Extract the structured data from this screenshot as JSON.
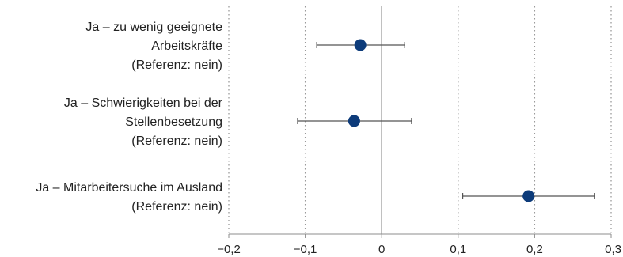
{
  "chart_data": {
    "type": "scatter",
    "title": "",
    "xlabel": "",
    "ylabel": "",
    "xlim": [
      -0.2,
      0.3
    ],
    "x_ticks": [
      -0.2,
      -0.1,
      0,
      0.1,
      0.2,
      0.3
    ],
    "x_tick_labels": [
      "−0,2",
      "−0,1",
      "0",
      "0,1",
      "0,2",
      "0,3"
    ],
    "grid": "vertical dotted",
    "zero_line": true,
    "colors": {
      "point": "#0d3b7a",
      "error_bar": "#555555",
      "grid": "#9a9a9a",
      "zero_line": "#8c8c8c",
      "axis": "#8c8c8c"
    },
    "categories": [
      {
        "label_lines": [
          "Ja – zu wenig geeignete",
          "Arbeitskräfte",
          "(Referenz: nein)"
        ],
        "estimate": -0.028,
        "ci_low": -0.085,
        "ci_high": 0.03
      },
      {
        "label_lines": [
          "Ja – Schwierigkeiten bei der",
          "Stellenbesetzung",
          "(Referenz: nein)"
        ],
        "estimate": -0.036,
        "ci_low": -0.11,
        "ci_high": 0.039
      },
      {
        "label_lines": [
          "Ja – Mitarbeitersuche im Ausland",
          "(Referenz: nein)"
        ],
        "estimate": 0.192,
        "ci_low": 0.106,
        "ci_high": 0.278
      }
    ]
  }
}
